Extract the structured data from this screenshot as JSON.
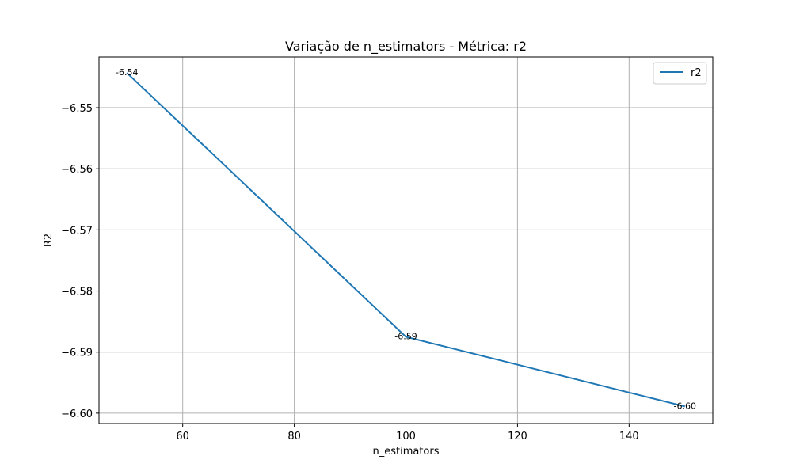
{
  "chart_data": {
    "type": "line",
    "title": "Variação de n_estimators - Métrica: r2",
    "xlabel": "n_estimators",
    "ylabel": "R2",
    "x": [
      50,
      100,
      150
    ],
    "series": [
      {
        "name": "r2",
        "values": [
          -6.5443,
          -6.5875,
          -6.5989
        ],
        "color": "#1f77b4",
        "data_labels": [
          "-6.54",
          "-6.59",
          "-6.60"
        ]
      }
    ],
    "xlim": [
      45,
      155
    ],
    "ylim": [
      -6.6017,
      -6.5417
    ],
    "xticks": [
      60,
      80,
      100,
      120,
      140
    ],
    "xtick_labels": [
      "60",
      "80",
      "100",
      "120",
      "140"
    ],
    "yticks": [
      -6.55,
      -6.56,
      -6.57,
      -6.58,
      -6.59,
      -6.6
    ],
    "ytick_labels": [
      "−6.55",
      "−6.56",
      "−6.57",
      "−6.58",
      "−6.59",
      "−6.60"
    ],
    "grid": true,
    "legend_position": "top-right"
  }
}
